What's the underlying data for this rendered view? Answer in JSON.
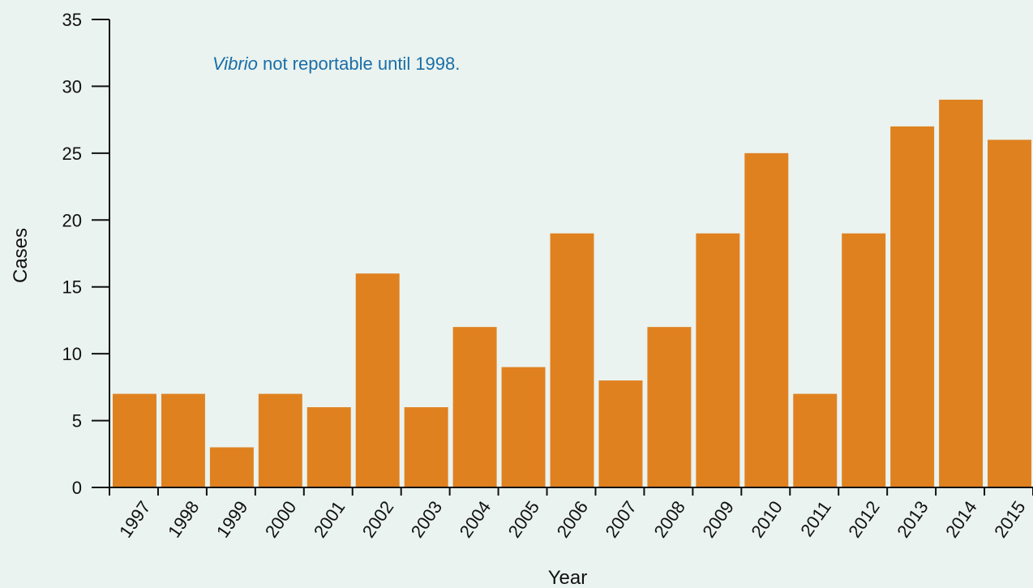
{
  "chart_data": {
    "type": "bar",
    "title": "",
    "xlabel": "Year",
    "ylabel": "Cases",
    "ylim": [
      0,
      35
    ],
    "yticks": [
      0,
      5,
      10,
      15,
      20,
      25,
      30,
      35
    ],
    "grid": false,
    "categories": [
      "1997",
      "1998",
      "1999",
      "2000",
      "2001",
      "2002",
      "2003",
      "2004",
      "2005",
      "2006",
      "2007",
      "2008",
      "2009",
      "2010",
      "2011",
      "2012",
      "2013",
      "2014",
      "2015"
    ],
    "values": [
      7,
      7,
      3,
      7,
      6,
      16,
      6,
      12,
      9,
      19,
      8,
      12,
      19,
      25,
      7,
      19,
      27,
      29,
      26
    ],
    "annotation": {
      "italic_part": "Vibrio",
      "rest": " not reportable until 1998."
    },
    "colors": {
      "bar": "#e08120",
      "annotation": "#1a6ea8",
      "axis": "#111111",
      "background": "#eaf3ef"
    }
  }
}
